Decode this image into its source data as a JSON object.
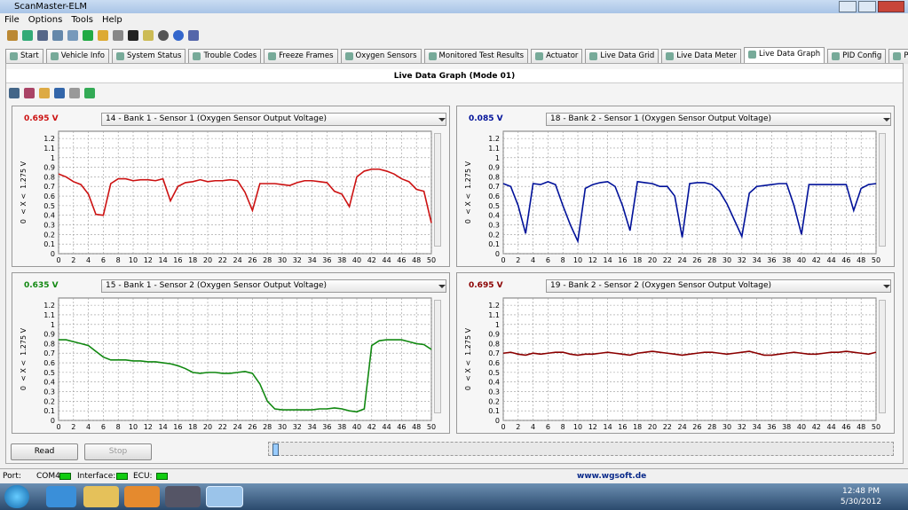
{
  "window": {
    "title": "ScanMaster-ELM"
  },
  "menu": [
    "File",
    "Options",
    "Tools",
    "Help"
  ],
  "tabs": [
    "Start",
    "Vehicle Info",
    "System Status",
    "Trouble Codes",
    "Freeze Frames",
    "Oxygen Sensors",
    "Monitored Test Results",
    "Actuator",
    "Live Data Grid",
    "Live Data Meter",
    "Live Data Graph",
    "PID Config",
    "Power"
  ],
  "panel_title": "Live Data Graph (Mode 01)",
  "chart_data": [
    {
      "type": "line",
      "readout": "0.695 V",
      "selector": "14 - Bank 1 - Sensor 1 (Oxygen Sensor Output Voltage)",
      "y_label": "0  < X <  1.275 V",
      "color": "#cc1111",
      "x": [
        0,
        1,
        2,
        3,
        4,
        5,
        6,
        7,
        8,
        9,
        10,
        11,
        12,
        13,
        14,
        15,
        16,
        17,
        18,
        19,
        20,
        21,
        22,
        23,
        24,
        25,
        26,
        27,
        28,
        29,
        30,
        31,
        32,
        33,
        34,
        35,
        36,
        37,
        38,
        39,
        40,
        41,
        42,
        43,
        44,
        45,
        46,
        47,
        48,
        49,
        50
      ],
      "values": [
        0.83,
        0.8,
        0.75,
        0.72,
        0.62,
        0.41,
        0.4,
        0.73,
        0.78,
        0.78,
        0.76,
        0.77,
        0.77,
        0.76,
        0.78,
        0.55,
        0.7,
        0.74,
        0.75,
        0.77,
        0.75,
        0.76,
        0.76,
        0.77,
        0.76,
        0.64,
        0.45,
        0.73,
        0.73,
        0.73,
        0.72,
        0.71,
        0.74,
        0.76,
        0.76,
        0.75,
        0.74,
        0.65,
        0.62,
        0.49,
        0.8,
        0.86,
        0.88,
        0.88,
        0.86,
        0.83,
        0.78,
        0.75,
        0.67,
        0.65,
        0.32
      ],
      "xlim": [
        0,
        50
      ],
      "ylim": [
        0,
        1.275
      ],
      "xticks": [
        0,
        2,
        4,
        6,
        8,
        10,
        12,
        14,
        16,
        18,
        20,
        22,
        24,
        26,
        28,
        30,
        32,
        34,
        36,
        38,
        40,
        42,
        44,
        46,
        48,
        50
      ],
      "yticks": [
        0,
        0.1,
        0.2,
        0.3,
        0.4,
        0.5,
        0.6,
        0.7,
        0.8,
        0.9,
        1,
        1.1,
        1.2
      ],
      "grid": true
    },
    {
      "type": "line",
      "readout": "0.085 V",
      "selector": "18 - Bank 2 - Sensor 1 (Oxygen Sensor Output Voltage)",
      "y_label": "0  < X <  1.275 V",
      "color": "#001199",
      "x": [
        0,
        1,
        2,
        3,
        4,
        5,
        6,
        7,
        8,
        9,
        10,
        11,
        12,
        13,
        14,
        15,
        16,
        17,
        18,
        19,
        20,
        21,
        22,
        23,
        24,
        25,
        26,
        27,
        28,
        29,
        30,
        31,
        32,
        33,
        34,
        35,
        36,
        37,
        38,
        39,
        40,
        41,
        42,
        43,
        44,
        45,
        46,
        47,
        48,
        49,
        50
      ],
      "values": [
        0.73,
        0.7,
        0.5,
        0.21,
        0.73,
        0.72,
        0.75,
        0.72,
        0.5,
        0.3,
        0.13,
        0.68,
        0.72,
        0.74,
        0.75,
        0.7,
        0.5,
        0.24,
        0.75,
        0.74,
        0.73,
        0.7,
        0.7,
        0.6,
        0.17,
        0.73,
        0.74,
        0.74,
        0.72,
        0.65,
        0.52,
        0.35,
        0.18,
        0.63,
        0.7,
        0.71,
        0.72,
        0.73,
        0.73,
        0.5,
        0.2,
        0.72,
        0.72,
        0.72,
        0.72,
        0.72,
        0.72,
        0.45,
        0.68,
        0.72,
        0.73
      ],
      "xlim": [
        0,
        50
      ],
      "ylim": [
        0,
        1.275
      ],
      "xticks": [
        0,
        2,
        4,
        6,
        8,
        10,
        12,
        14,
        16,
        18,
        20,
        22,
        24,
        26,
        28,
        30,
        32,
        34,
        36,
        38,
        40,
        42,
        44,
        46,
        48,
        50
      ],
      "yticks": [
        0,
        0.1,
        0.2,
        0.3,
        0.4,
        0.5,
        0.6,
        0.7,
        0.8,
        0.9,
        1,
        1.1,
        1.2
      ],
      "grid": true
    },
    {
      "type": "line",
      "readout": "0.635 V",
      "selector": "15 - Bank 1 - Sensor 2 (Oxygen Sensor Output Voltage)",
      "y_label": "0  < X <  1.275 V",
      "color": "#118811",
      "x": [
        0,
        1,
        2,
        3,
        4,
        5,
        6,
        7,
        8,
        9,
        10,
        11,
        12,
        13,
        14,
        15,
        16,
        17,
        18,
        19,
        20,
        21,
        22,
        23,
        24,
        25,
        26,
        27,
        28,
        29,
        30,
        31,
        32,
        33,
        34,
        35,
        36,
        37,
        38,
        39,
        40,
        41,
        42,
        43,
        44,
        45,
        46,
        47,
        48,
        49,
        50
      ],
      "values": [
        0.84,
        0.84,
        0.82,
        0.8,
        0.78,
        0.72,
        0.66,
        0.63,
        0.63,
        0.63,
        0.62,
        0.62,
        0.61,
        0.61,
        0.6,
        0.59,
        0.57,
        0.54,
        0.5,
        0.49,
        0.5,
        0.5,
        0.49,
        0.49,
        0.5,
        0.51,
        0.49,
        0.38,
        0.2,
        0.12,
        0.11,
        0.11,
        0.11,
        0.11,
        0.11,
        0.12,
        0.12,
        0.13,
        0.12,
        0.1,
        0.09,
        0.12,
        0.78,
        0.83,
        0.84,
        0.84,
        0.84,
        0.82,
        0.8,
        0.79,
        0.74
      ],
      "xlim": [
        0,
        50
      ],
      "ylim": [
        0,
        1.275
      ],
      "xticks": [
        0,
        2,
        4,
        6,
        8,
        10,
        12,
        14,
        16,
        18,
        20,
        22,
        24,
        26,
        28,
        30,
        32,
        34,
        36,
        38,
        40,
        42,
        44,
        46,
        48,
        50
      ],
      "yticks": [
        0,
        0.1,
        0.2,
        0.3,
        0.4,
        0.5,
        0.6,
        0.7,
        0.8,
        0.9,
        1,
        1.1,
        1.2
      ],
      "grid": true
    },
    {
      "type": "line",
      "readout": "0.695 V",
      "selector": "19 - Bank 2 - Sensor 2 (Oxygen Sensor Output Voltage)",
      "y_label": "0  < X <  1.275 V",
      "color": "#8b0000",
      "x": [
        0,
        1,
        2,
        3,
        4,
        5,
        6,
        7,
        8,
        9,
        10,
        11,
        12,
        13,
        14,
        15,
        16,
        17,
        18,
        19,
        20,
        21,
        22,
        23,
        24,
        25,
        26,
        27,
        28,
        29,
        30,
        31,
        32,
        33,
        34,
        35,
        36,
        37,
        38,
        39,
        40,
        41,
        42,
        43,
        44,
        45,
        46,
        47,
        48,
        49,
        50
      ],
      "values": [
        0.7,
        0.71,
        0.69,
        0.68,
        0.7,
        0.69,
        0.7,
        0.71,
        0.71,
        0.69,
        0.68,
        0.69,
        0.69,
        0.7,
        0.71,
        0.7,
        0.69,
        0.68,
        0.7,
        0.71,
        0.72,
        0.71,
        0.7,
        0.69,
        0.68,
        0.69,
        0.7,
        0.71,
        0.71,
        0.7,
        0.69,
        0.7,
        0.71,
        0.72,
        0.7,
        0.68,
        0.68,
        0.69,
        0.7,
        0.71,
        0.7,
        0.69,
        0.69,
        0.7,
        0.71,
        0.71,
        0.72,
        0.71,
        0.7,
        0.69,
        0.71
      ],
      "xlim": [
        0,
        50
      ],
      "ylim": [
        0,
        1.275
      ],
      "xticks": [
        0,
        2,
        4,
        6,
        8,
        10,
        12,
        14,
        16,
        18,
        20,
        22,
        24,
        26,
        28,
        30,
        32,
        34,
        36,
        38,
        40,
        42,
        44,
        46,
        48,
        50
      ],
      "yticks": [
        0,
        0.1,
        0.2,
        0.3,
        0.4,
        0.5,
        0.6,
        0.7,
        0.8,
        0.9,
        1,
        1.1,
        1.2
      ],
      "grid": true
    }
  ],
  "buttons": [
    "Read",
    "Stop"
  ],
  "status": {
    "port_label": "Port:",
    "port": "COM4",
    "interface_label": "Interface:",
    "ecu_label": "ECU:",
    "website": "www.wgsoft.de"
  },
  "taskbar": {
    "time": "12:48 PM",
    "date": "5/30/2012"
  }
}
